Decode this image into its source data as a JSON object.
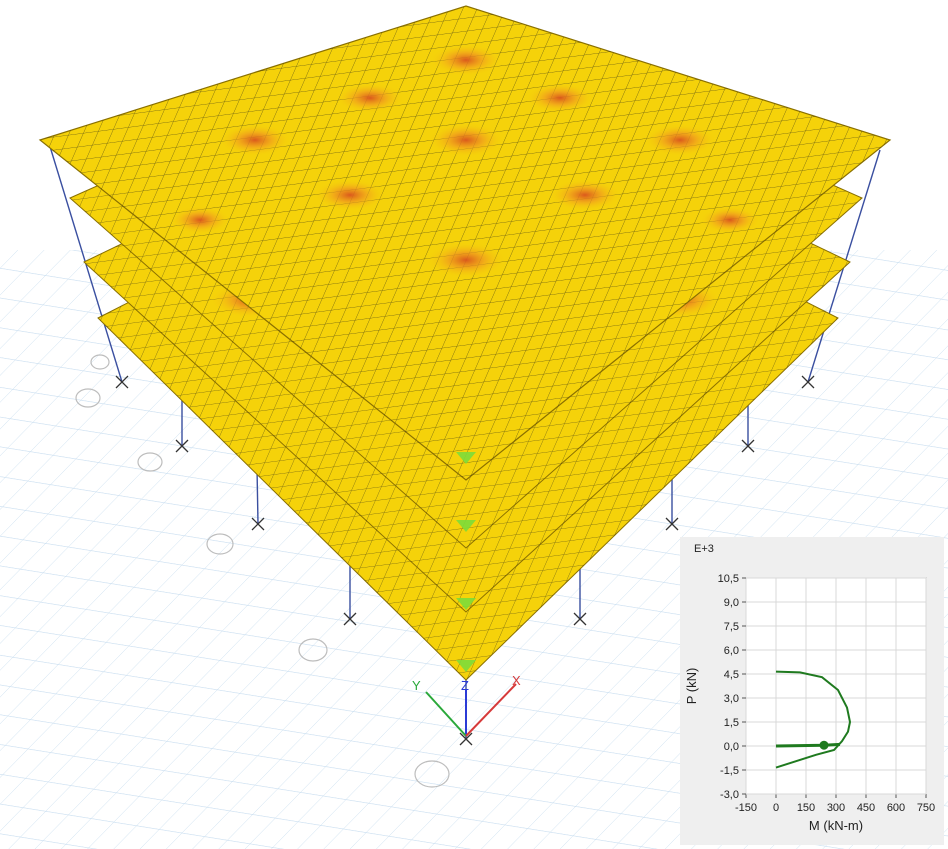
{
  "viewport": {
    "axes": {
      "x_label": "X",
      "y_label": "Y",
      "z_label": "Z"
    },
    "colors": {
      "slab": "#f5d20a",
      "slab_edge": "#c9a400",
      "hot": "#d9531d",
      "warm": "#f09a1e",
      "support": "#7ddc3a",
      "grid": "#c6dcef",
      "column": "#3a4fa0"
    },
    "floor_count": 4
  },
  "chart_data": {
    "type": "line",
    "title": "",
    "exponent_label": "E+3",
    "xlabel": "M (kN-m)",
    "ylabel": "P (kN)",
    "xlim": [
      -150,
      750
    ],
    "ylim": [
      -3.0,
      10.5
    ],
    "x_ticks": [
      "-150",
      "0",
      "150",
      "300",
      "450",
      "600",
      "750"
    ],
    "y_ticks": [
      "10,5",
      "9,0",
      "7,5",
      "6,0",
      "4,5",
      "3,0",
      "1,5",
      "0,0",
      "-1,5",
      "-3,0"
    ],
    "grid": true,
    "series": [
      {
        "values": [
          [
            0,
            4.65
          ],
          [
            120,
            4.6
          ],
          [
            230,
            4.3
          ],
          [
            310,
            3.5
          ],
          [
            355,
            2.4
          ],
          [
            370,
            1.5
          ],
          [
            360,
            0.9
          ],
          [
            330,
            0.3
          ],
          [
            290,
            -0.25
          ],
          [
            200,
            -0.55
          ],
          [
            100,
            -0.95
          ],
          [
            0,
            -1.35
          ]
        ]
      },
      {
        "values": [
          [
            0,
            0.0
          ],
          [
            240,
            0.05
          ],
          [
            320,
            0.1
          ]
        ]
      }
    ],
    "point": [
      240,
      0.05
    ],
    "line_color": "#1f7a1f"
  }
}
